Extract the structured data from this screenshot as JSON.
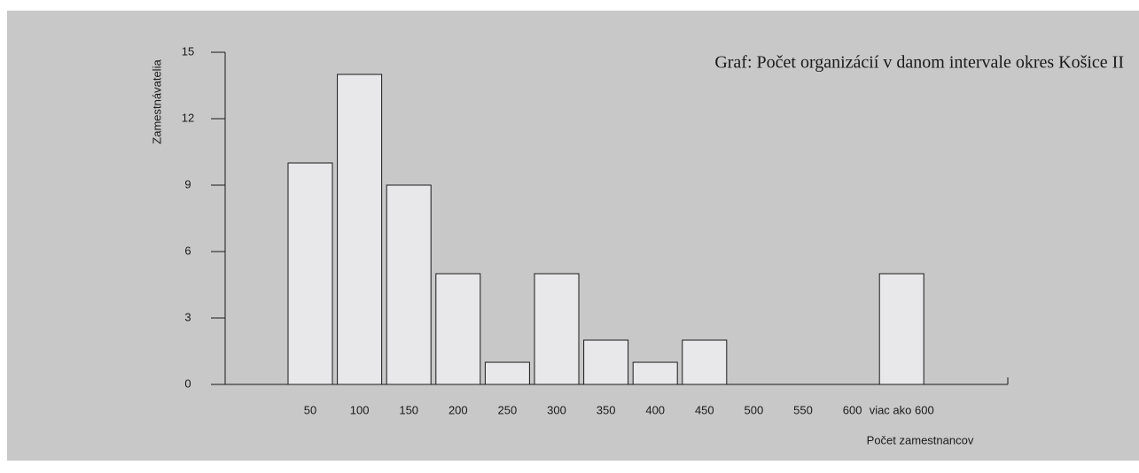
{
  "chart_data": {
    "type": "bar",
    "title": "Graf: Počet organizácií v danom intervale okres Košice II",
    "y_label": "Zamestnávatelia",
    "x_label": "Počet zamestnancov",
    "categories": [
      "50",
      "100",
      "150",
      "200",
      "250",
      "300",
      "350",
      "400",
      "450",
      "500",
      "550",
      "600",
      "viac ako 600"
    ],
    "values": [
      10,
      14,
      9,
      5,
      1,
      5,
      2,
      1,
      2,
      0,
      0,
      0,
      5
    ],
    "color": "#e8e8ea",
    "ylim": [
      0,
      15
    ],
    "yticks": [
      0,
      3,
      6,
      9,
      12,
      15
    ],
    "grid": false
  }
}
